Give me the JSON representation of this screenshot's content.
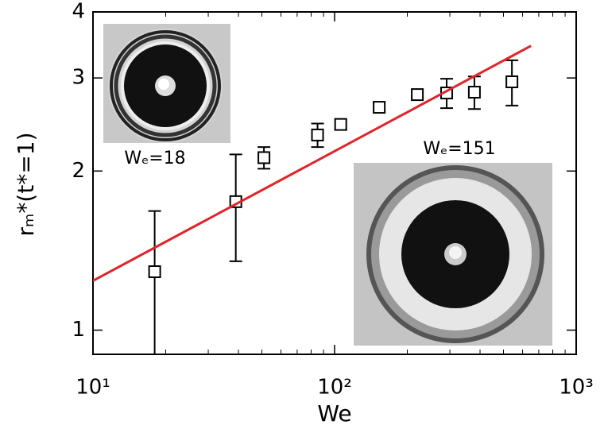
{
  "chart_data": {
    "type": "scatter",
    "xlabel": "We",
    "ylabel": "rₘ*(t*=1)",
    "xscale": "log",
    "yscale": "log",
    "xlim": [
      10,
      1000
    ],
    "ylim": [
      0.9,
      4
    ],
    "xticks": [
      {
        "value": 10,
        "label": "10¹"
      },
      {
        "value": 100,
        "label": "10²"
      },
      {
        "value": 1000,
        "label": "10³"
      }
    ],
    "yticks": [
      1,
      2,
      3,
      4
    ],
    "series": [
      {
        "type": "errorbar",
        "color": "#000000",
        "x": [
          18,
          39,
          51,
          85,
          106,
          153,
          220,
          291,
          379,
          542
        ],
        "values": [
          1.29,
          1.75,
          2.12,
          2.34,
          2.45,
          2.64,
          2.79,
          2.81,
          2.82,
          2.95
        ],
        "errors": [
          0.39,
          0.4,
          0.1,
          0.12,
          0.05,
          0.05,
          0.04,
          0.18,
          0.2,
          0.29
        ]
      },
      {
        "type": "line",
        "color": "#e0242a",
        "x": [
          10,
          650
        ],
        "values": [
          1.24,
          3.45
        ]
      }
    ],
    "annotations": [
      "Wₑ=18",
      "Wₑ=151"
    ]
  }
}
